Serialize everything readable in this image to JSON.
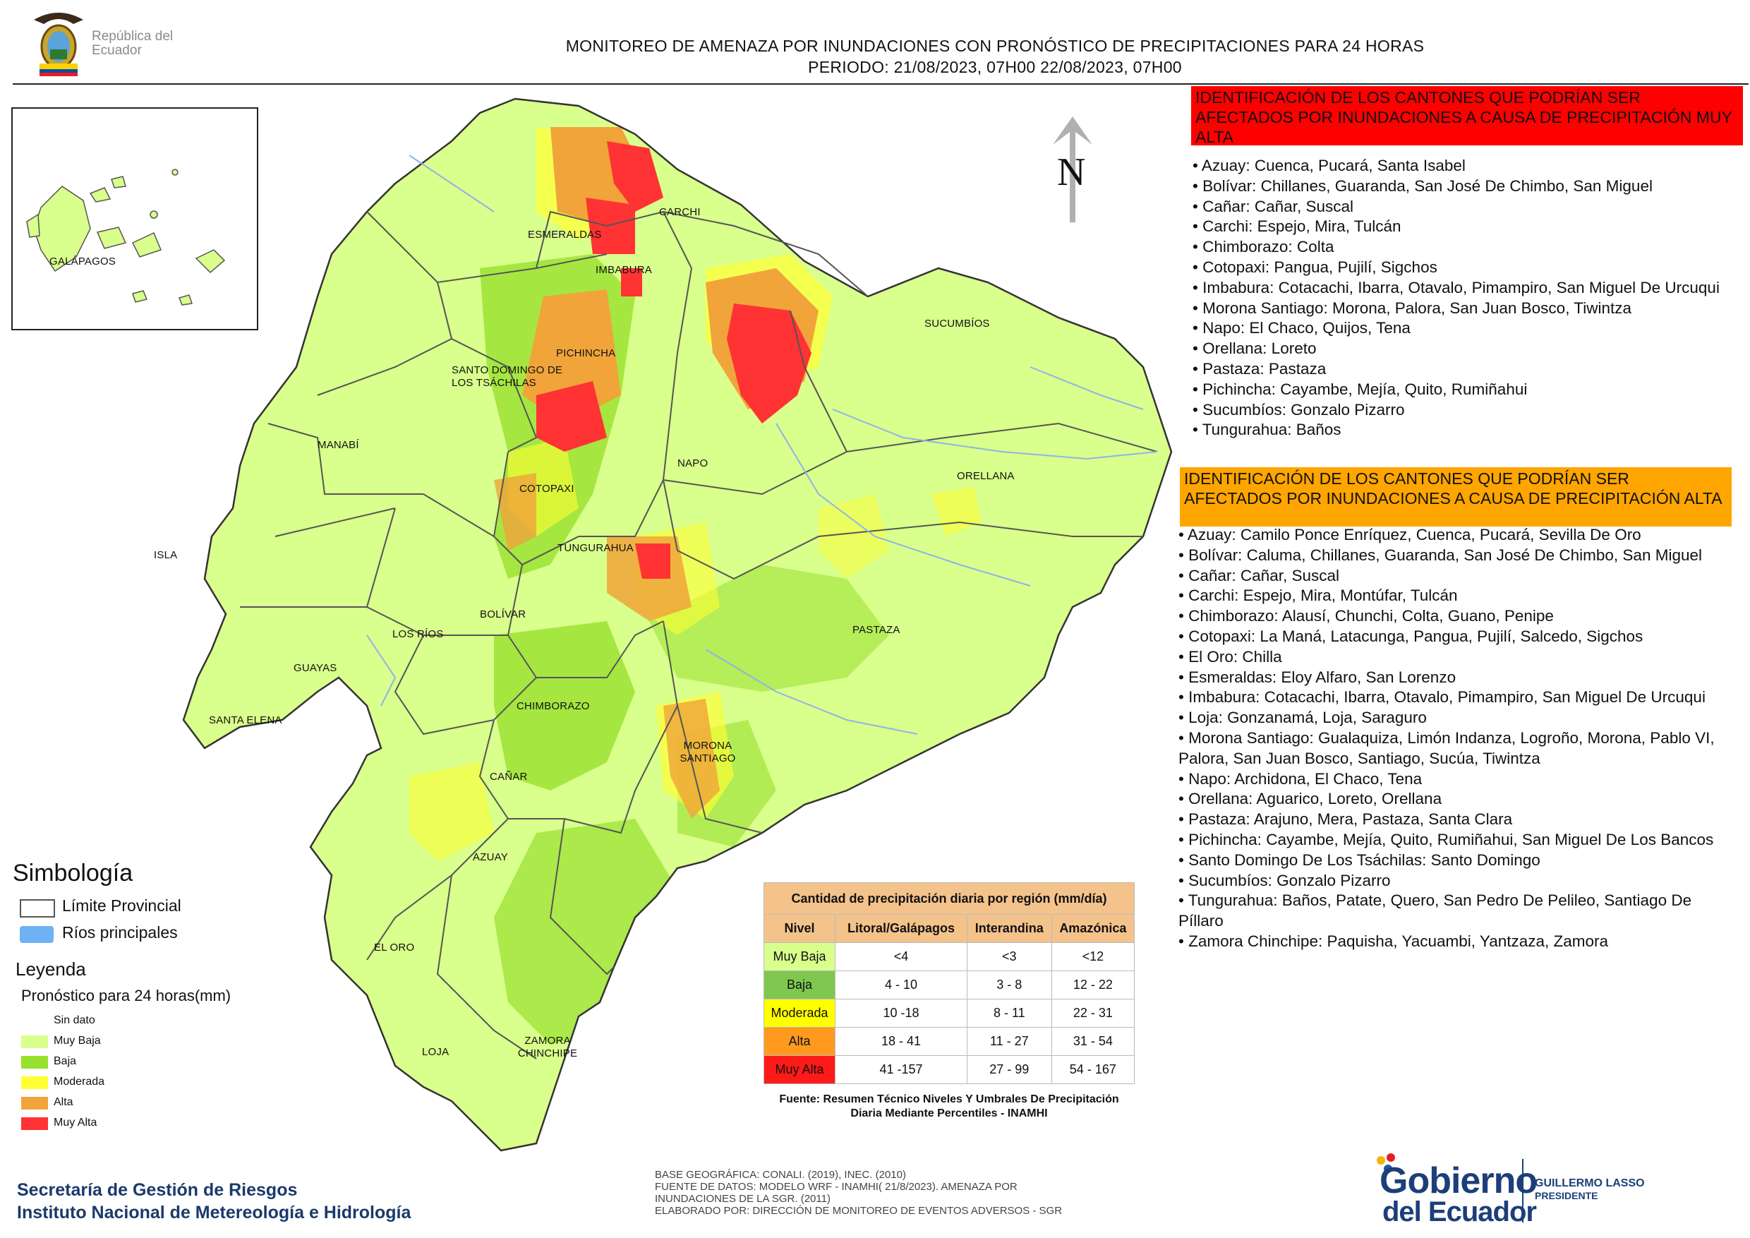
{
  "header": {
    "country_logo_text": "República del Ecuador",
    "title_line1": "MONITOREO DE AMENAZA POR INUNDACIONES  CON PRONÓSTICO DE  PRECIPITACIONES PARA 24 HORAS",
    "title_line2": "PERIODO: 21/08/2023, 07H00 22/08/2023, 07H00"
  },
  "north_label": "N",
  "provinces": {
    "galapagos": "GALÁPAGOS",
    "esmeraldas": "ESMERALDAS",
    "carchi": "CARCHI",
    "imbabura": "IMBABURA",
    "sucumbios": "SUCUMBÍOS",
    "pichincha": "PICHINCHA",
    "santo_domingo": "SANTO DOMINGO DE LOS TSÁCHILAS",
    "manabi": "MANABÍ",
    "napo": "NAPO",
    "orellana": "ORELLANA",
    "cotopaxi": "COTOPAXI",
    "tungurahua": "TUNGURAHUA",
    "isla": "ISLA",
    "bolivar": "BOLÍVAR",
    "los_rios": "LOS RÍOS",
    "pastaza": "PASTAZA",
    "guayas": "GUAYAS",
    "chimborazo": "CHIMBORAZO",
    "santa_elena": "SANTA ELENA",
    "morona_santiago": "MORONA SANTIAGO",
    "canar": "CAÑAR",
    "azuay": "AZUAY",
    "el_oro": "EL ORO",
    "zamora_chinchipe": "ZAMORA CHINCHIPE",
    "loja": "LOJA"
  },
  "muy_alta": {
    "title": "IDENTIFICACIÓN DE LOS CANTONES QUE PODRÍAN SER AFECTADOS POR INUNDACIONES  A CAUSA DE PRECIPITACIÓN MUY ALTA",
    "items": [
      "• Azuay: Cuenca, Pucará, Santa Isabel",
      "• Bolívar: Chillanes, Guaranda, San José De Chimbo, San Miguel",
      "• Cañar: Cañar, Suscal",
      "• Carchi: Espejo, Mira, Tulcán",
      "• Chimborazo: Colta",
      "• Cotopaxi: Pangua, Pujilí, Sigchos",
      "• Imbabura: Cotacachi, Ibarra, Otavalo, Pimampiro, San Miguel De Urcuqui",
      "• Morona Santiago: Morona, Palora, San Juan Bosco, Tiwintza",
      "• Napo: El Chaco, Quijos, Tena",
      "• Orellana: Loreto",
      "• Pastaza: Pastaza",
      "• Pichincha: Cayambe, Mejía, Quito, Rumiñahui",
      "• Sucumbíos: Gonzalo Pizarro",
      "• Tungurahua: Baños"
    ]
  },
  "alta": {
    "title": "IDENTIFICACIÓN DE LOS CANTONES QUE  PODRÍAN SER AFECTADOS POR INUNDACIONES  A CAUSA DE PRECIPITACIÓN ALTA",
    "items": [
      "• Azuay: Camilo Ponce Enríquez, Cuenca, Pucará, Sevilla De Oro",
      "• Bolívar: Caluma, Chillanes, Guaranda, San José De Chimbo, San Miguel",
      "• Cañar: Cañar, Suscal",
      "• Carchi: Espejo, Mira, Montúfar, Tulcán",
      "• Chimborazo: Alausí, Chunchi, Colta, Guano, Penipe",
      "• Cotopaxi: La Maná, Latacunga, Pangua, Pujilí, Salcedo, Sigchos",
      "• El Oro: Chilla",
      "• Esmeraldas: Eloy Alfaro, San Lorenzo",
      "• Imbabura: Cotacachi, Ibarra, Otavalo, Pimampiro, San Miguel De Urcuqui",
      "• Loja: Gonzanamá, Loja, Saraguro",
      "• Morona Santiago: Gualaquiza, Limón Indanza, Logroño, Morona, Pablo VI, Palora, San Juan Bosco, Santiago, Sucúa, Tiwintza",
      "• Napo: Archidona, El Chaco, Tena",
      "• Orellana: Aguarico, Loreto, Orellana",
      "• Pastaza: Arajuno, Mera, Pastaza, Santa Clara",
      "• Pichincha: Cayambe, Mejía, Quito, Rumiñahui, San Miguel De Los Bancos",
      "• Santo Domingo De Los Tsáchilas: Santo Domingo",
      "• Sucumbíos: Gonzalo Pizarro",
      "• Tungurahua: Baños, Patate, Quero, San Pedro De Pelileo, Santiago De Píllaro",
      "• Zamora Chinchipe: Paquisha, Yacuambi, Yantzaza, Zamora"
    ]
  },
  "legend": {
    "simbologia_title": "Simbología",
    "limite_label": "Límite Provincial",
    "rios_label": "Ríos principales",
    "leyenda_title": "Leyenda",
    "pronostico_title": "Pronóstico para 24 horas(mm)",
    "classes": [
      {
        "label": "Sin dato",
        "color": "#ffffff"
      },
      {
        "label": "Muy Baja",
        "color": "#d9ff8c"
      },
      {
        "label": "Baja",
        "color": "#98e02e"
      },
      {
        "label": "Moderada",
        "color": "#ffff33"
      },
      {
        "label": "Alta",
        "color": "#f0a43a"
      },
      {
        "label": "Muy Alta",
        "color": "#ff3333"
      }
    ]
  },
  "precip_table": {
    "title": "Cantidad de precipitación diaria por región (mm/día)",
    "headers": [
      "Nivel",
      "Litoral/Galápagos",
      "Interandina",
      "Amazónica"
    ],
    "rows": [
      {
        "nivel": "Muy Baja",
        "color": "#d9ff8c",
        "values": [
          "<4",
          "<3",
          "<12"
        ]
      },
      {
        "nivel": "Baja",
        "color": "#7ec850",
        "values": [
          "4 - 10",
          "3 - 8",
          "12 - 22"
        ]
      },
      {
        "nivel": "Moderada",
        "color": "#ffff00",
        "values": [
          "10 -18",
          "8 - 11",
          "22 - 31"
        ]
      },
      {
        "nivel": "Alta",
        "color": "#ff9a1f",
        "values": [
          "18 - 41",
          "11 - 27",
          "31 - 54"
        ]
      },
      {
        "nivel": "Muy Alta",
        "color": "#ff1a1a",
        "values": [
          "41 -157",
          "27 - 99",
          "54 - 167"
        ]
      }
    ],
    "source": "Fuente: Resumen Técnico Niveles Y Umbrales De Precipitación Diaria Mediante Percentiles - INAMHI"
  },
  "footer": {
    "org_line1": "Secretaría de Gestión de Riesgos",
    "org_line2": "Instituto Nacional de Metereología e Hidrología",
    "source_lines": [
      "BASE GEOGRÁFICA: CONALI. (2019), INEC. (2010)",
      "FUENTE DE DATOS: MODELO WRF - INAMHI( 21/8/2023).  AMENAZA POR",
      "INUNDACIONES DE LA SGR. (2011)",
      "ELABORADO POR: DIRECCIÓN DE MONITOREO DE EVENTOS ADVERSOS - SGR"
    ],
    "gob_line1": "Gobierno",
    "gob_line2": "del Ecuador",
    "president_name": "GUILLERMO LASSO",
    "president_title": "PRESIDENTE"
  }
}
